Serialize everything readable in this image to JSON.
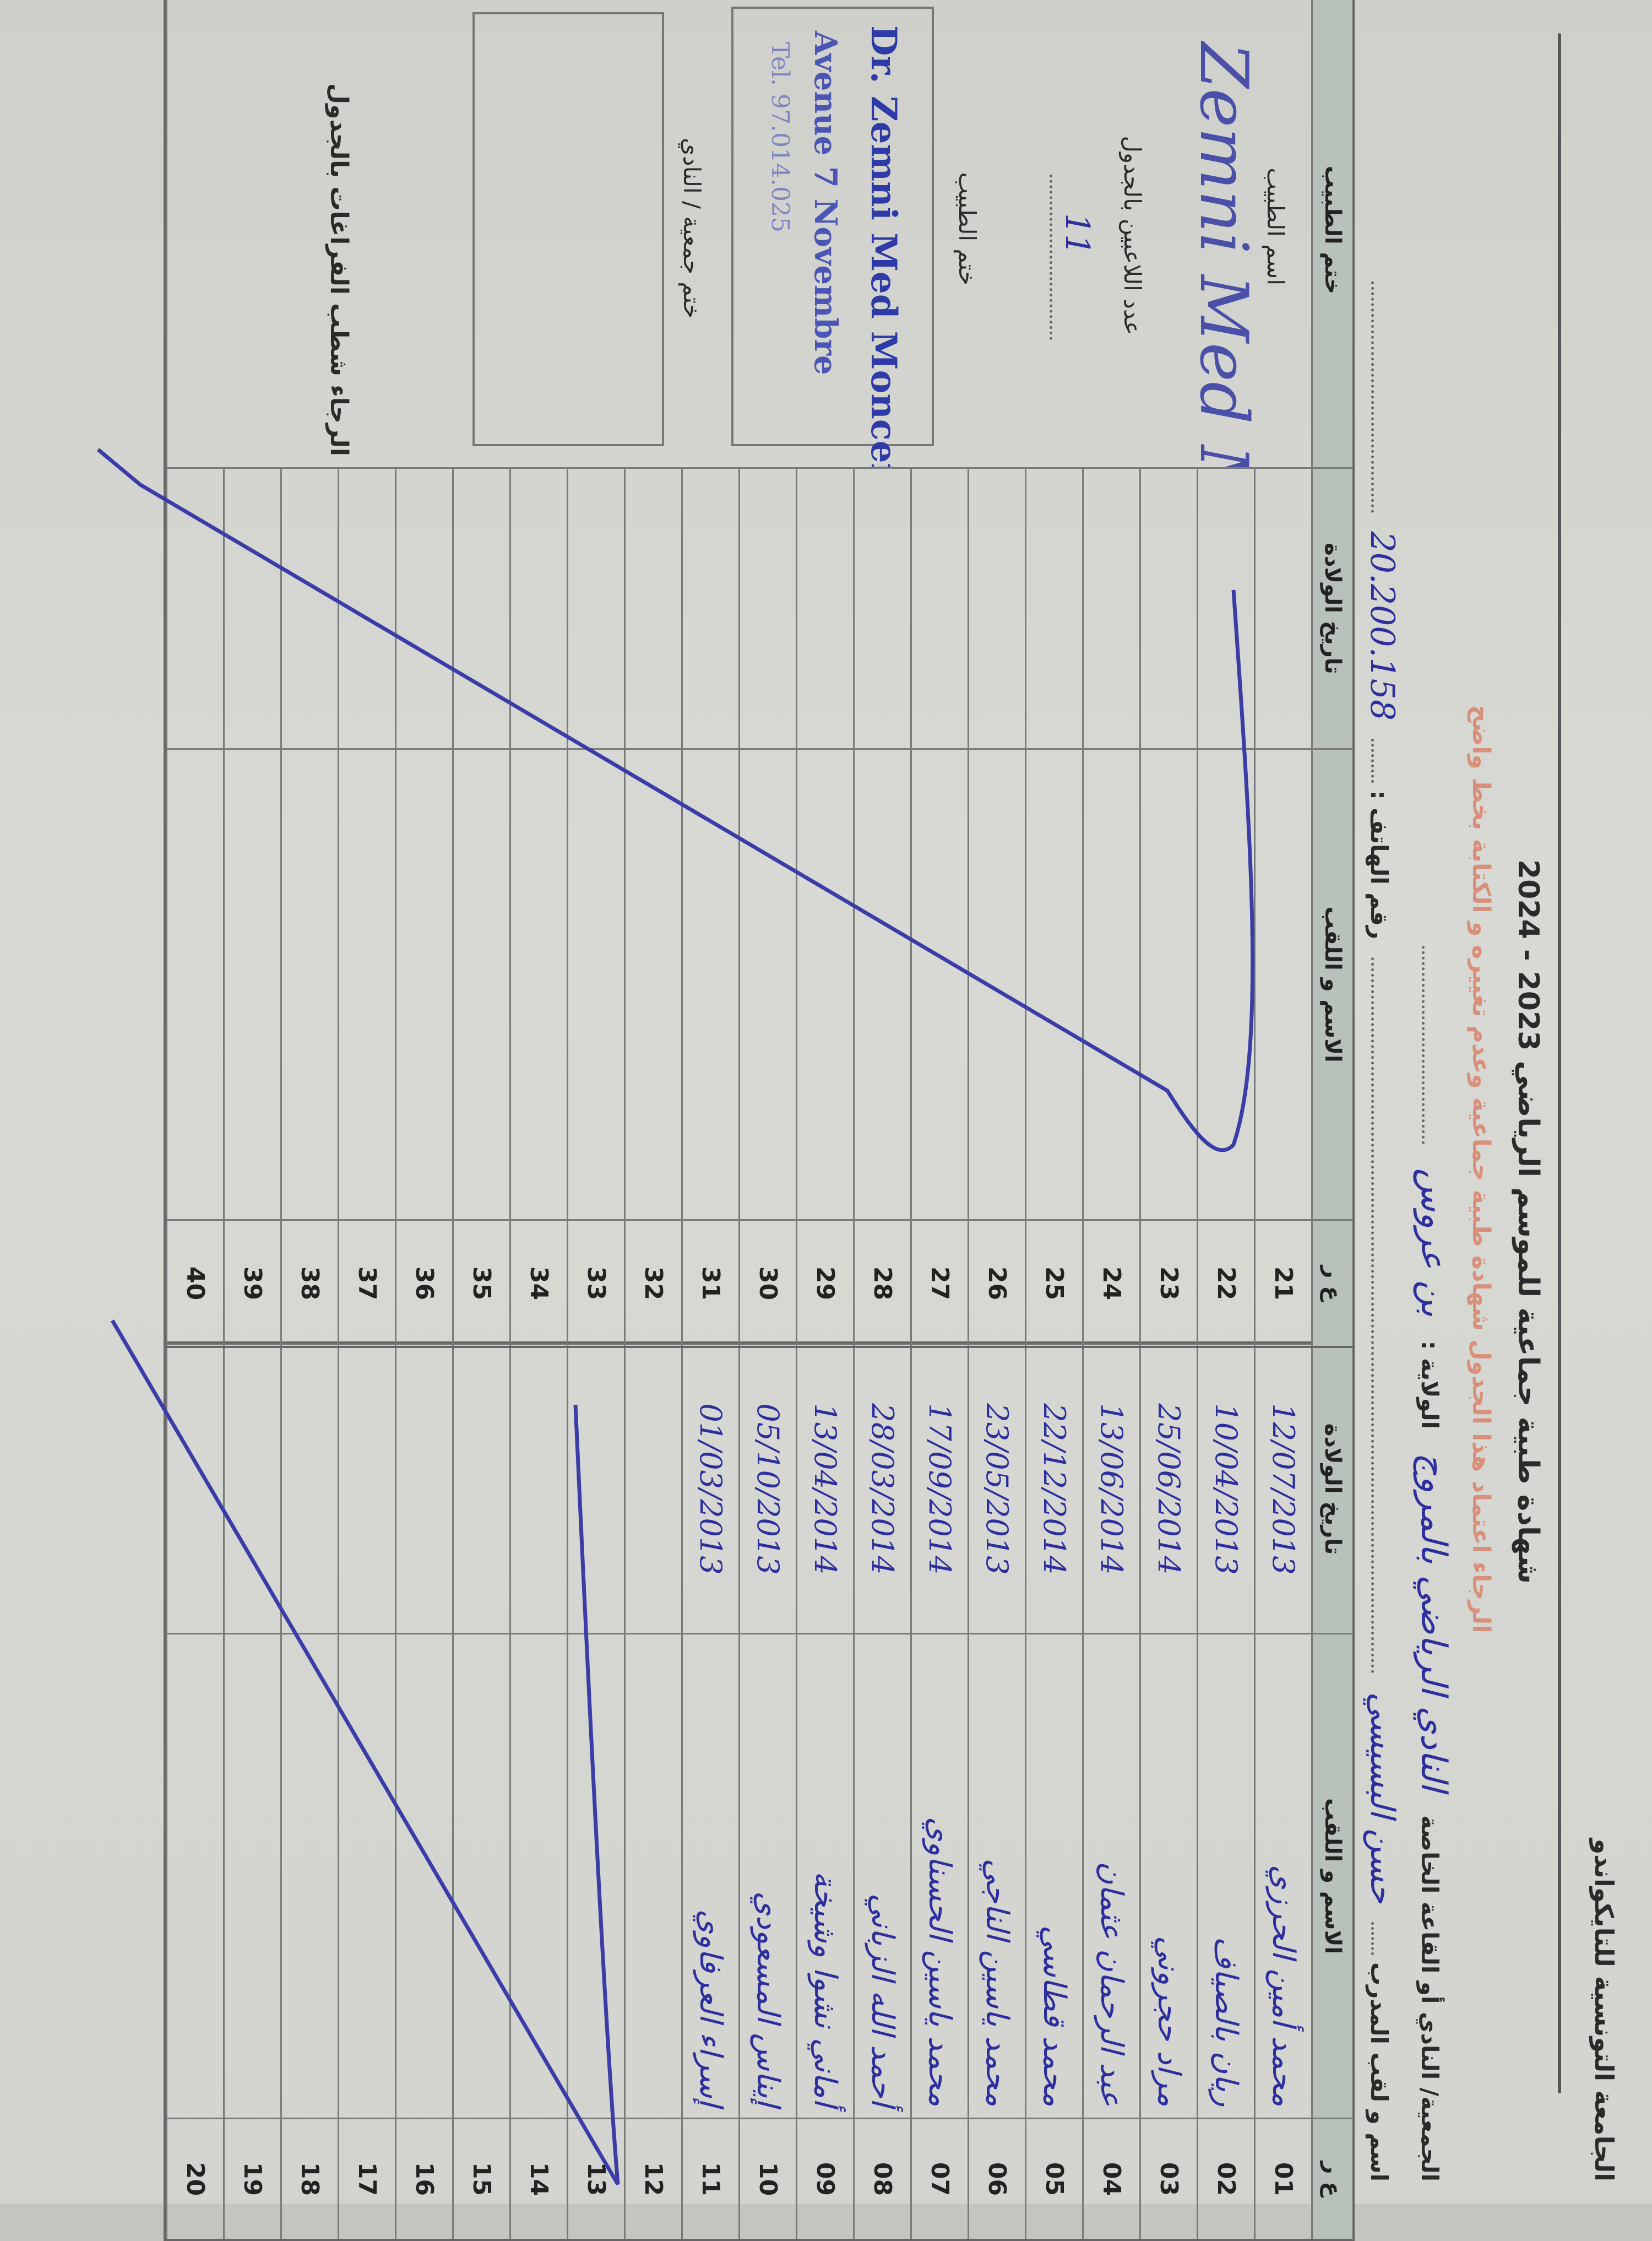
{
  "header": {
    "federation": "الجامعة التونسية للتايكواندو",
    "title": "شهادة طبية جماعية للموسم الرياضي 2023 - 2024",
    "instruction": "الرجاء اعتماد هذا الجدول شهادة طبية جماعية وعدم تغييره و الكتابة بخط واضح",
    "club_label": "الجمعية/ النادي أو القاعة الخاصة",
    "club_value": "النادي الرياضي بالمروج",
    "state_label": "الولاية :",
    "state_value": "بن عروس",
    "coach_label": "اسم و لقب المدرب",
    "coach_value": "حسن البسيسي",
    "phone_label": "رقم الهاتف :",
    "phone_value": "20.200.158"
  },
  "table": {
    "col_rank": "ع ر",
    "col_name": "الاسم و اللقب",
    "col_birth": "تاريخ الولادة",
    "col_doctor": "ختم الطبيب",
    "rows": [
      {
        "n": "01",
        "name": "محمد أمين الحرزي",
        "birth": "12/07/2013"
      },
      {
        "n": "02",
        "name": "ريان بالصياف",
        "birth": "10/04/2013"
      },
      {
        "n": "03",
        "name": "مراد حجروني",
        "birth": "25/06/2014"
      },
      {
        "n": "04",
        "name": "عبد الرحمان عثمان",
        "birth": "13/06/2014"
      },
      {
        "n": "05",
        "name": "محمد قطاسي",
        "birth": "22/12/2014"
      },
      {
        "n": "06",
        "name": "محمد ياسين الناجي",
        "birth": "23/05/2013"
      },
      {
        "n": "07",
        "name": "محمد ياسين الحسناوي",
        "birth": "17/09/2014"
      },
      {
        "n": "08",
        "name": "أحمد الله الزباني",
        "birth": "28/03/2014"
      },
      {
        "n": "09",
        "name": "أماني نشوا وشيخة",
        "birth": "13/04/2014"
      },
      {
        "n": "10",
        "name": "إيناس المسعودي",
        "birth": "05/10/2013"
      },
      {
        "n": "11",
        "name": "إسراء العرفاوي",
        "birth": "01/03/2013"
      },
      {
        "n": "12",
        "name": "",
        "birth": ""
      },
      {
        "n": "13",
        "name": "",
        "birth": ""
      },
      {
        "n": "14",
        "name": "",
        "birth": ""
      },
      {
        "n": "15",
        "name": "",
        "birth": ""
      },
      {
        "n": "16",
        "name": "",
        "birth": ""
      },
      {
        "n": "17",
        "name": "",
        "birth": ""
      },
      {
        "n": "18",
        "name": "",
        "birth": ""
      },
      {
        "n": "19",
        "name": "",
        "birth": ""
      },
      {
        "n": "20",
        "name": "",
        "birth": ""
      },
      {
        "n": "21",
        "name": "",
        "birth": ""
      },
      {
        "n": "22",
        "name": "",
        "birth": ""
      },
      {
        "n": "23",
        "name": "",
        "birth": ""
      },
      {
        "n": "24",
        "name": "",
        "birth": ""
      },
      {
        "n": "25",
        "name": "",
        "birth": ""
      },
      {
        "n": "26",
        "name": "",
        "birth": ""
      },
      {
        "n": "27",
        "name": "",
        "birth": ""
      },
      {
        "n": "28",
        "name": "",
        "birth": ""
      },
      {
        "n": "29",
        "name": "",
        "birth": ""
      },
      {
        "n": "30",
        "name": "",
        "birth": ""
      },
      {
        "n": "31",
        "name": "",
        "birth": ""
      },
      {
        "n": "32",
        "name": "",
        "birth": ""
      },
      {
        "n": "33",
        "name": "",
        "birth": ""
      },
      {
        "n": "34",
        "name": "",
        "birth": ""
      },
      {
        "n": "35",
        "name": "",
        "birth": ""
      },
      {
        "n": "36",
        "name": "",
        "birth": ""
      },
      {
        "n": "37",
        "name": "",
        "birth": ""
      },
      {
        "n": "38",
        "name": "",
        "birth": ""
      },
      {
        "n": "39",
        "name": "",
        "birth": ""
      },
      {
        "n": "40",
        "name": "",
        "birth": ""
      }
    ]
  },
  "doctor": {
    "name_label": "اسم الطبيب",
    "name_value": "Zemni Med Moncef",
    "count_label": "عدد اللاعبين بالجدول",
    "count_value": "11",
    "stamp_label": "ختم الطبيب",
    "stamp_line1": "Dr. Zemni Med Moncef",
    "stamp_line2": "Avenue 7 Novembre",
    "stamp_line3": "Tel. 97.014.025",
    "club_stamp_label": "ختم جمعية / النادي",
    "note": "الرجاء شطب الفراغات بالجدول"
  },
  "colors": {
    "ink_blue": "#2d2f9e",
    "instruction_red": "#d8907a",
    "header_fill": "#b8c1ba"
  }
}
